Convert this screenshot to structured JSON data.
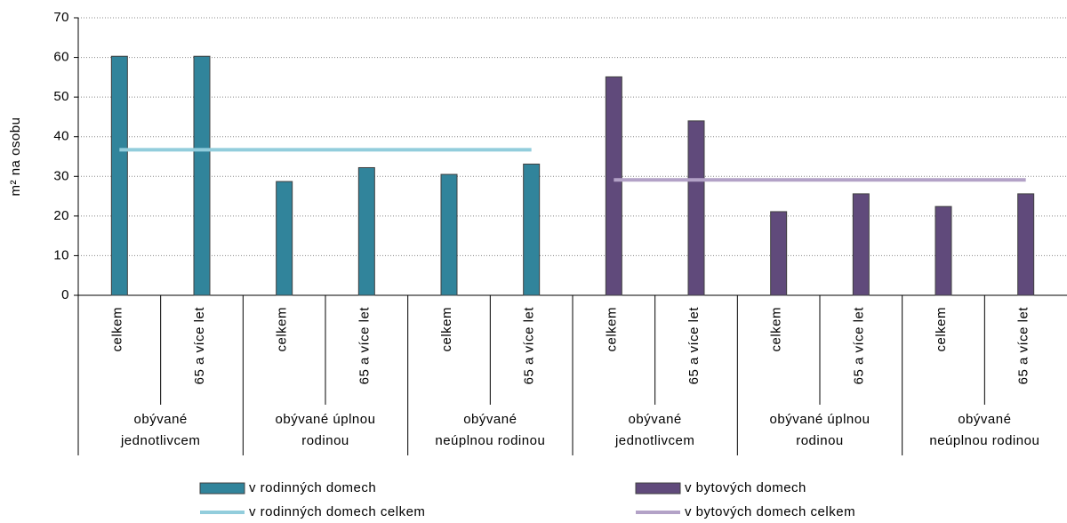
{
  "chart_data": {
    "type": "bar",
    "y_label": "m² na osobu",
    "categories": [
      "celkem",
      "65 a více let",
      "celkem",
      "65 a více let",
      "celkem",
      "65 a více let",
      "celkem",
      "65 a více let",
      "celkem",
      "65 a více let",
      "celkem",
      "65 a více let"
    ],
    "groups": [
      [
        "obývané",
        "jednotlivcem"
      ],
      [
        "obývané úplnou",
        "rodinou"
      ],
      [
        "obývané",
        "neúplnou rodinou"
      ],
      [
        "obývané",
        "jednotlivcem"
      ],
      [
        "obývané úplnou",
        "rodinou"
      ],
      [
        "obývané",
        "neúplnou rodinou"
      ]
    ],
    "series": [
      {
        "name": "v rodinných domech",
        "type": "bar",
        "color": "#31849b",
        "values": [
          60.3,
          60.3,
          28.7,
          32.2,
          30.5,
          33.1,
          null,
          null,
          null,
          null,
          null,
          null
        ]
      },
      {
        "name": "v bytových domech",
        "type": "bar",
        "color": "#604a7b",
        "values": [
          null,
          null,
          null,
          null,
          null,
          null,
          55.1,
          44.0,
          21.1,
          25.6,
          22.4,
          25.6
        ]
      },
      {
        "name": "v rodinných domech celkem",
        "type": "line",
        "color": "#92cddc",
        "values": [
          36.7,
          36.7,
          36.7,
          36.7,
          36.7,
          36.7,
          null,
          null,
          null,
          null,
          null,
          null
        ]
      },
      {
        "name": "v bytových domech celkem",
        "type": "line",
        "color": "#b3a2c7",
        "values": [
          null,
          null,
          null,
          null,
          null,
          null,
          29.1,
          29.1,
          29.1,
          29.1,
          29.1,
          29.1
        ]
      }
    ],
    "ylim": [
      0,
      70
    ],
    "yticks": [
      0,
      10,
      20,
      30,
      40,
      50,
      60,
      70
    ],
    "grid": true
  }
}
